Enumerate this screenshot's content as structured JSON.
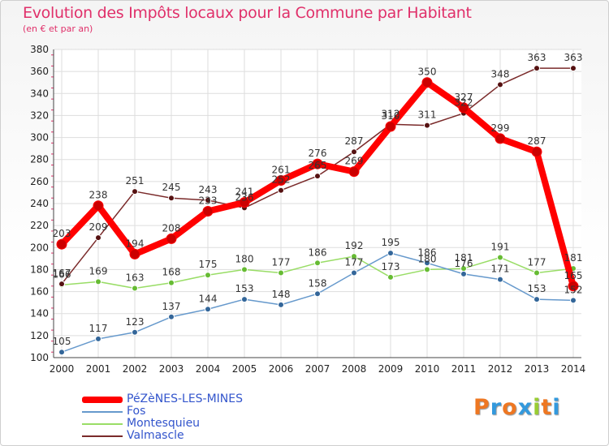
{
  "chart_data": {
    "type": "line",
    "title": "Evolution des Impôts locaux pour la Commune par Habitant",
    "subtitle": "(en € et par an)",
    "xlabel": "",
    "ylabel": "",
    "x": [
      "2000",
      "2001",
      "2002",
      "2003",
      "2004",
      "2005",
      "2006",
      "2007",
      "2008",
      "2009",
      "2010",
      "2011",
      "2012",
      "2013",
      "2014"
    ],
    "ylim": [
      100,
      380
    ],
    "yticks": [
      100,
      120,
      140,
      160,
      180,
      200,
      220,
      240,
      260,
      280,
      300,
      320,
      340,
      360,
      380
    ],
    "grid": true,
    "legend_position": "bottom-left",
    "series": [
      {
        "name": "PéZèNES-LES-MINES",
        "color": "#ff0000",
        "values": [
          203,
          238,
          194,
          208,
          233,
          241,
          261,
          276,
          269,
          310,
          350,
          327,
          299,
          287,
          165
        ]
      },
      {
        "name": "Fos",
        "color": "#6699cc",
        "values": [
          105,
          117,
          123,
          137,
          144,
          153,
          148,
          158,
          177,
          195,
          186,
          176,
          171,
          153,
          152
        ]
      },
      {
        "name": "Montesquieu",
        "color": "#99dd66",
        "values": [
          166,
          169,
          163,
          168,
          175,
          180,
          177,
          186,
          192,
          173,
          180,
          181,
          191,
          177,
          181
        ]
      },
      {
        "name": "Valmascle",
        "color": "#7a2a2a",
        "values": [
          167,
          209,
          251,
          245,
          243,
          236,
          252,
          265,
          287,
          312,
          311,
          322,
          348,
          363,
          363
        ]
      }
    ]
  },
  "logo": {
    "text": "Proxiti"
  }
}
